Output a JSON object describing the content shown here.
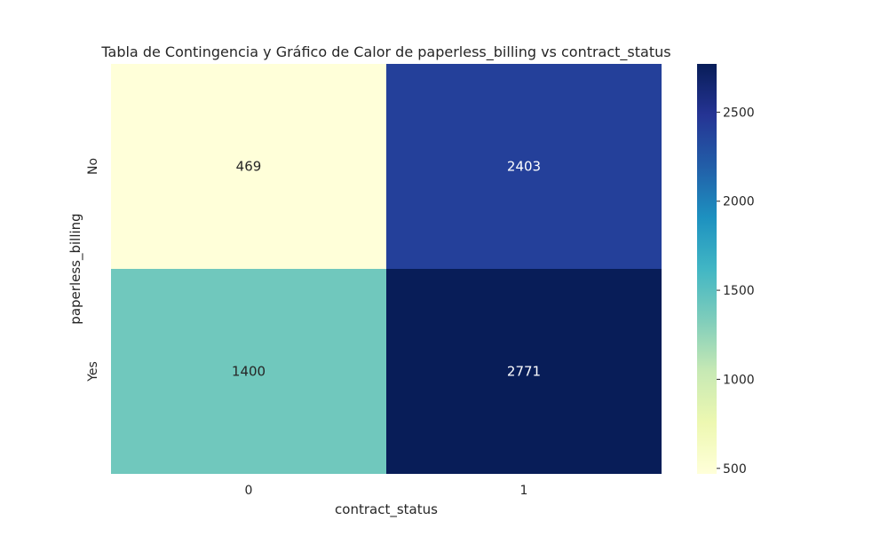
{
  "chart_data": {
    "type": "heatmap",
    "title": "Tabla de Contingencia y Gráfico de Calor de paperless_billing vs contract_status",
    "xlabel": "contract_status",
    "ylabel": "paperless_billing",
    "x_categories": [
      "0",
      "1"
    ],
    "y_categories": [
      "No",
      "Yes"
    ],
    "values": [
      [
        469,
        2403
      ],
      [
        1400,
        2771
      ]
    ],
    "cell_labels": [
      [
        "469",
        "2403"
      ],
      [
        "1400",
        "2771"
      ]
    ],
    "colormap": "YlGnBu",
    "colorbar": {
      "range": [
        469,
        2771
      ],
      "ticks": [
        500,
        1000,
        1500,
        2000,
        2500
      ],
      "tick_labels": [
        "500",
        "1000",
        "1500",
        "2000",
        "2500"
      ]
    },
    "grid": false
  }
}
